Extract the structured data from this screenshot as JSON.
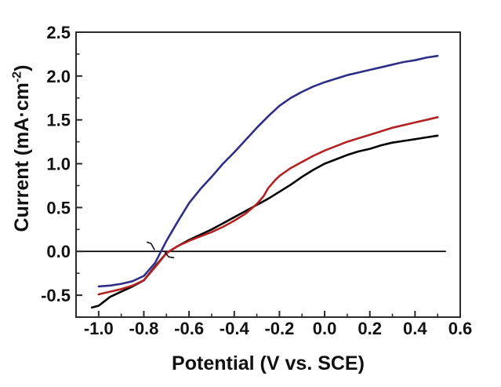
{
  "figure": {
    "x_axis_title": "Potential (V vs. SCE)",
    "y_axis_title_pre": "Current (mA·cm",
    "y_axis_title_sup": "-2",
    "y_axis_title_post": ")"
  },
  "chart_data": {
    "type": "line",
    "title": "",
    "xlabel": "Potential (V vs. SCE)",
    "ylabel": "Current (mA·cm-2)",
    "xlim": [
      -1.1,
      0.6
    ],
    "ylim": [
      -0.75,
      2.5
    ],
    "grid": false,
    "legend": "none",
    "axis_color": "#2b2b2b",
    "x_major_ticks": [
      -1.0,
      -0.8,
      -0.6,
      -0.4,
      -0.2,
      0.0,
      0.2,
      0.4,
      0.6
    ],
    "x_tick_labels": [
      "-1.0",
      "-0.8",
      "-0.6",
      "-0.4",
      "-0.2",
      "0.0",
      "0.2",
      "0.4",
      "0.6"
    ],
    "x_minor_ticks": [
      -0.9,
      -0.7,
      -0.5,
      -0.3,
      -0.1,
      0.1,
      0.3,
      0.5
    ],
    "y_major_ticks": [
      2.5,
      2.0,
      1.5,
      1.0,
      0.5,
      0.0,
      -0.5
    ],
    "y_tick_labels": [
      "2.5",
      "2.0",
      "1.5",
      "1.0",
      "0.5",
      "0.0",
      "-0.5"
    ],
    "y_minor_ticks": [
      2.25,
      1.75,
      1.25,
      0.75,
      0.25,
      -0.25
    ],
    "zero_line": {
      "y": 0.0,
      "x_start": -1.1,
      "x_end": 0.537,
      "color": "#000000"
    },
    "series": [
      {
        "name": "black-curve",
        "color": "#000000",
        "x": [
          -1.03,
          -1.0,
          -0.97,
          -0.95,
          -0.9,
          -0.85,
          -0.8,
          -0.75,
          -0.7,
          -0.65,
          -0.6,
          -0.55,
          -0.5,
          -0.45,
          -0.4,
          -0.35,
          -0.3,
          -0.25,
          -0.2,
          -0.15,
          -0.1,
          -0.05,
          0.0,
          0.05,
          0.1,
          0.15,
          0.2,
          0.25,
          0.3,
          0.35,
          0.4,
          0.45,
          0.5
        ],
        "y": [
          -0.64,
          -0.62,
          -0.56,
          -0.52,
          -0.46,
          -0.4,
          -0.33,
          -0.17,
          -0.02,
          0.06,
          0.13,
          0.19,
          0.25,
          0.32,
          0.39,
          0.46,
          0.53,
          0.6,
          0.68,
          0.76,
          0.85,
          0.93,
          1.0,
          1.05,
          1.1,
          1.14,
          1.17,
          1.21,
          1.24,
          1.26,
          1.28,
          1.3,
          1.32
        ]
      },
      {
        "name": "red-curve",
        "color": "#b42122",
        "x": [
          -1.0,
          -0.95,
          -0.9,
          -0.85,
          -0.8,
          -0.75,
          -0.7,
          -0.65,
          -0.6,
          -0.55,
          -0.5,
          -0.45,
          -0.4,
          -0.35,
          -0.3,
          -0.27,
          -0.25,
          -0.22,
          -0.2,
          -0.15,
          -0.1,
          -0.05,
          0.0,
          0.05,
          0.1,
          0.15,
          0.2,
          0.25,
          0.3,
          0.35,
          0.4,
          0.45,
          0.5
        ],
        "y": [
          -0.49,
          -0.46,
          -0.43,
          -0.39,
          -0.33,
          -0.18,
          -0.02,
          0.06,
          0.12,
          0.17,
          0.22,
          0.28,
          0.35,
          0.43,
          0.54,
          0.63,
          0.72,
          0.81,
          0.86,
          0.95,
          1.02,
          1.09,
          1.15,
          1.2,
          1.25,
          1.29,
          1.33,
          1.37,
          1.41,
          1.44,
          1.47,
          1.5,
          1.53
        ]
      },
      {
        "name": "blue-curve",
        "color": "#2e2e88",
        "x": [
          -1.0,
          -0.95,
          -0.9,
          -0.85,
          -0.8,
          -0.75,
          -0.7,
          -0.65,
          -0.6,
          -0.55,
          -0.5,
          -0.45,
          -0.4,
          -0.35,
          -0.3,
          -0.25,
          -0.2,
          -0.15,
          -0.1,
          -0.05,
          0.0,
          0.05,
          0.1,
          0.15,
          0.2,
          0.25,
          0.3,
          0.35,
          0.4,
          0.45,
          0.5
        ],
        "y": [
          -0.4,
          -0.39,
          -0.37,
          -0.34,
          -0.28,
          -0.13,
          0.12,
          0.34,
          0.55,
          0.71,
          0.85,
          1.0,
          1.13,
          1.27,
          1.41,
          1.54,
          1.66,
          1.75,
          1.82,
          1.88,
          1.93,
          1.97,
          2.01,
          2.04,
          2.07,
          2.1,
          2.13,
          2.16,
          2.18,
          2.21,
          2.23
        ]
      }
    ],
    "annotations": [
      {
        "name": "onset-mark-left",
        "points": [
          [
            -0.785,
            0.105
          ],
          [
            -0.768,
            0.09
          ],
          [
            -0.753,
            0.02
          ]
        ]
      },
      {
        "name": "onset-mark-right",
        "points": [
          [
            -0.706,
            -0.012
          ],
          [
            -0.69,
            -0.063
          ],
          [
            -0.668,
            -0.072
          ]
        ]
      }
    ]
  }
}
